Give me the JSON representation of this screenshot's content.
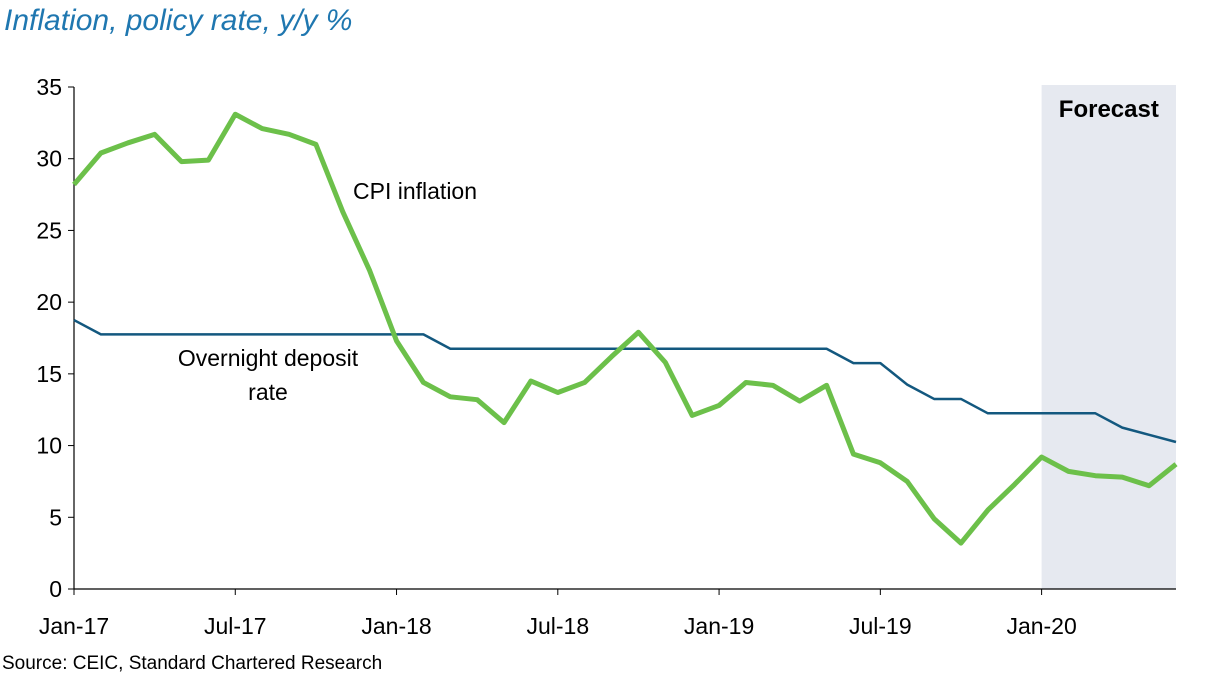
{
  "title": "Inflation, policy rate, y/y %",
  "source": "Source: CEIC, Standard Chartered Research",
  "chart_data": {
    "type": "line",
    "title": "Inflation, policy rate, y/y %",
    "ylim": [
      0,
      35
    ],
    "yticks": [
      0,
      5,
      10,
      15,
      20,
      25,
      30,
      35
    ],
    "x": [
      "Jan-17",
      "Feb-17",
      "Mar-17",
      "Apr-17",
      "May-17",
      "Jun-17",
      "Jul-17",
      "Aug-17",
      "Sep-17",
      "Oct-17",
      "Nov-17",
      "Dec-17",
      "Jan-18",
      "Feb-18",
      "Mar-18",
      "Apr-18",
      "May-18",
      "Jun-18",
      "Jul-18",
      "Aug-18",
      "Sep-18",
      "Oct-18",
      "Nov-18",
      "Dec-18",
      "Jan-19",
      "Feb-19",
      "Mar-19",
      "Apr-19",
      "May-19",
      "Jun-19",
      "Jul-19",
      "Aug-19",
      "Sep-19",
      "Oct-19",
      "Nov-19",
      "Dec-19",
      "Jan-20",
      "Feb-20",
      "Mar-20",
      "Apr-20",
      "May-20",
      "Jun-20"
    ],
    "xtick_labels": [
      "Jan-17",
      "Jul-17",
      "Jan-18",
      "Jul-18",
      "Jan-19",
      "Jul-19",
      "Jan-20"
    ],
    "forecast_region": {
      "label": "Forecast",
      "from": "Jan-20",
      "to": "Jun-20",
      "color": "#e6e9f0"
    },
    "series": [
      {
        "name": "CPI inflation",
        "color": "#6cc04a",
        "values": [
          28.2,
          30.4,
          31.1,
          31.7,
          29.8,
          29.9,
          33.1,
          32.1,
          31.7,
          31.0,
          26.3,
          22.2,
          17.3,
          14.4,
          13.4,
          13.2,
          11.6,
          14.5,
          13.7,
          14.4,
          16.2,
          17.9,
          15.8,
          12.1,
          12.8,
          14.4,
          14.2,
          13.1,
          14.2,
          9.4,
          8.8,
          7.5,
          4.9,
          3.2,
          5.5,
          7.3,
          9.2,
          8.2,
          7.9,
          7.8,
          7.2,
          8.7
        ]
      },
      {
        "name": "Overnight deposit rate",
        "color": "#13587f",
        "values": [
          18.75,
          17.75,
          17.75,
          17.75,
          17.75,
          17.75,
          17.75,
          17.75,
          17.75,
          17.75,
          17.75,
          17.75,
          17.75,
          17.75,
          16.75,
          16.75,
          16.75,
          16.75,
          16.75,
          16.75,
          16.75,
          16.75,
          16.75,
          16.75,
          16.75,
          16.75,
          16.75,
          16.75,
          16.75,
          15.75,
          15.75,
          14.25,
          13.25,
          13.25,
          12.25,
          12.25,
          12.25,
          12.25,
          12.25,
          11.25,
          10.75,
          10.25
        ]
      }
    ],
    "annotations": [
      "CPI inflation",
      "Overnight deposit",
      "rate"
    ],
    "grid": false,
    "legend": "none"
  }
}
